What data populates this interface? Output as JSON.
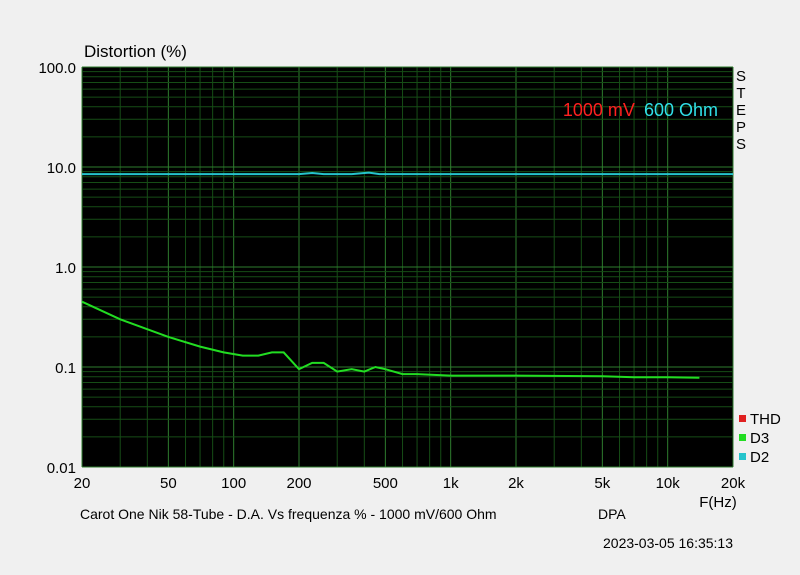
{
  "chart_data": {
    "type": "line",
    "title": "",
    "ylabel": "Distortion (%)",
    "xlabel": "F(Hz)",
    "x_scale": "log",
    "y_scale": "log",
    "xlim": [
      20,
      20000
    ],
    "ylim": [
      0.01,
      100
    ],
    "x_ticks": [
      {
        "v": 20,
        "label": "20"
      },
      {
        "v": 50,
        "label": "50"
      },
      {
        "v": 100,
        "label": "100"
      },
      {
        "v": 200,
        "label": "200"
      },
      {
        "v": 500,
        "label": "500"
      },
      {
        "v": 1000,
        "label": "1k"
      },
      {
        "v": 2000,
        "label": "2k"
      },
      {
        "v": 5000,
        "label": "5k"
      },
      {
        "v": 10000,
        "label": "10k"
      },
      {
        "v": 20000,
        "label": "20k"
      }
    ],
    "y_ticks": [
      {
        "v": 100,
        "label": "100.0"
      },
      {
        "v": 10,
        "label": "10.0"
      },
      {
        "v": 1,
        "label": "1.0"
      },
      {
        "v": 0.1,
        "label": "0.1"
      },
      {
        "v": 0.01,
        "label": "0.01"
      }
    ],
    "grid": true,
    "background": "#000000",
    "legend_position": "bottom-right",
    "series": [
      {
        "name": "THD",
        "color": "#e02020",
        "x": [],
        "y": []
      },
      {
        "name": "D3",
        "color": "#22dd22",
        "x": [
          20,
          30,
          50,
          70,
          90,
          110,
          130,
          150,
          170,
          200,
          230,
          260,
          300,
          350,
          400,
          450,
          500,
          600,
          700,
          1000,
          2000,
          5000,
          7000,
          10000,
          14000
        ],
        "y": [
          0.45,
          0.3,
          0.2,
          0.16,
          0.14,
          0.13,
          0.13,
          0.14,
          0.14,
          0.095,
          0.11,
          0.11,
          0.09,
          0.095,
          0.09,
          0.1,
          0.095,
          0.085,
          0.085,
          0.082,
          0.082,
          0.081,
          0.079,
          0.079,
          0.078
        ]
      },
      {
        "name": "D2",
        "color": "#25c4cc",
        "x": [
          20,
          200,
          230,
          260,
          350,
          420,
          470,
          20000
        ],
        "y": [
          8.5,
          8.5,
          8.7,
          8.5,
          8.5,
          8.8,
          8.5,
          8.5
        ]
      }
    ],
    "annotations": [
      {
        "text": "1000 mV",
        "color": "#ff2020"
      },
      {
        "text": "600 Ohm",
        "color": "#30e0e8"
      }
    ]
  },
  "side_label": [
    "S",
    "T",
    "E",
    "P",
    "S"
  ],
  "caption": {
    "description": "Carot One Nik 58-Tube - D.A. Vs frequenza % - 1000 mV/600 Ohm",
    "tag": "DPA",
    "timestamp": "2023-03-05 16:35:13"
  }
}
